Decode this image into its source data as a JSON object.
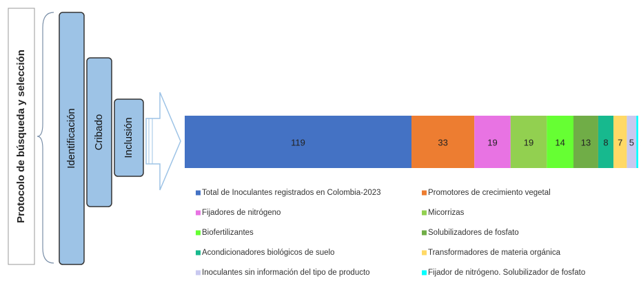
{
  "protocol": {
    "title": "Protocolo de búsqueda y selección",
    "steps": [
      "Identificación",
      "Cribado",
      "Inclusión"
    ]
  },
  "chart_data": {
    "type": "bar",
    "orientation": "horizontal",
    "stacked": true,
    "series": [
      {
        "name": "Total de Inoculantes registrados en Colombia-2023",
        "color": "#4472c4",
        "values": [
          119
        ]
      },
      {
        "name": "Promotores de crecimiento vegetal",
        "color": "#ed7d31",
        "values": [
          33
        ]
      },
      {
        "name": "Fijadores de nitrógeno",
        "color": "#e873e3",
        "values": [
          19
        ]
      },
      {
        "name": "Micorrizas",
        "color": "#92d050",
        "values": [
          19
        ]
      },
      {
        "name": "Biofertilizantes",
        "color": "#66ff33",
        "values": [
          14
        ]
      },
      {
        "name": "Solubilizadores de fosfato",
        "color": "#70ad47",
        "values": [
          13
        ]
      },
      {
        "name": "Acondicionadores biológicos de suelo",
        "color": "#17b98e",
        "values": [
          8
        ]
      },
      {
        "name": "Transformadores de materia orgánica",
        "color": "#ffd966",
        "values": [
          7
        ]
      },
      {
        "name": "Inoculantes sin información del tipo de producto",
        "color": "#c9c9f0",
        "values": [
          5
        ]
      },
      {
        "name": "Fijador de nitrógeno. Solubilizador de fosfato",
        "color": "#00ffff",
        "values": [
          1
        ]
      }
    ]
  }
}
